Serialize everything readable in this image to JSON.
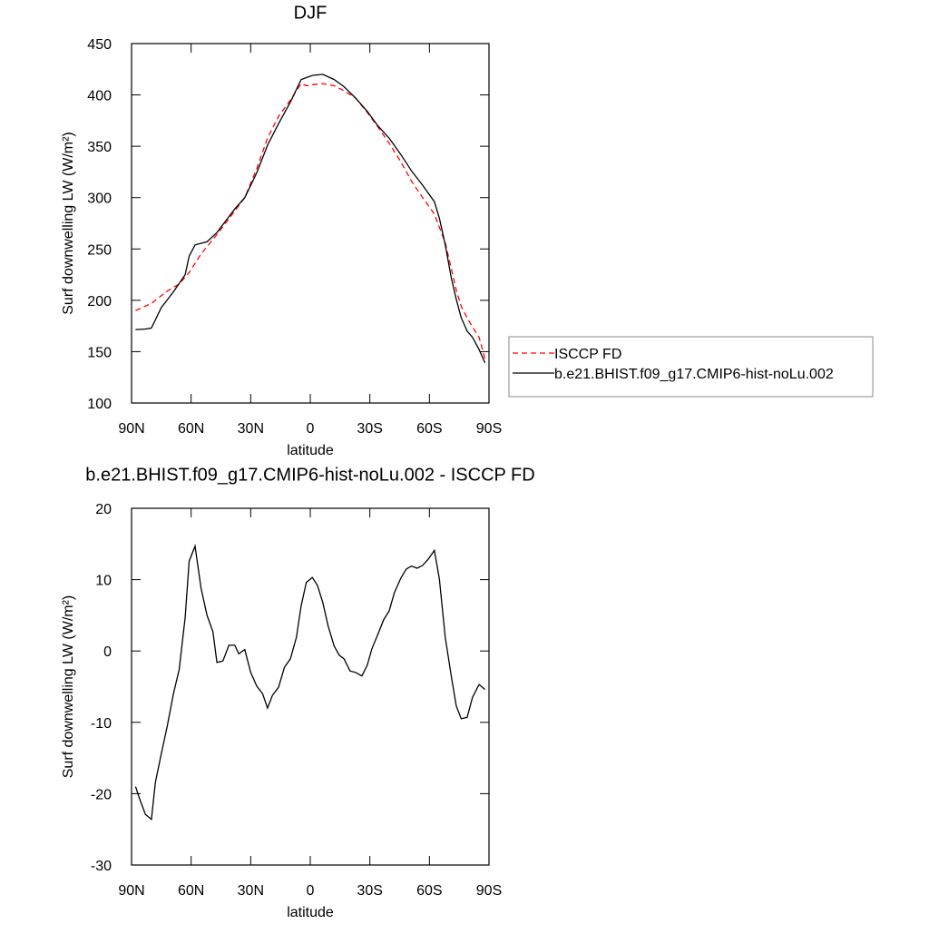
{
  "chart_data": [
    {
      "type": "line",
      "title": "DJF",
      "xlabel": "latitude",
      "ylabel": "Surf downwelling LW (W/m²)",
      "xlim": [
        90,
        -90
      ],
      "xticks": [
        {
          "value": 90,
          "label": "90N"
        },
        {
          "value": 60,
          "label": "60N"
        },
        {
          "value": 30,
          "label": "30N"
        },
        0,
        {
          "value": -30,
          "label": "30S"
        },
        {
          "value": -60,
          "label": "60S"
        },
        {
          "value": -90,
          "label": "90S"
        }
      ],
      "ylim": [
        100,
        450
      ],
      "yticks": [
        100,
        150,
        200,
        250,
        300,
        350,
        400,
        450
      ],
      "legend": "right",
      "series": [
        {
          "name": "ISCCP FD",
          "color": "#ff0000",
          "style": "dashed",
          "x": [
            88,
            80,
            72,
            66,
            61,
            55,
            47,
            38,
            33,
            27,
            21.5,
            16,
            10,
            4.6,
            2,
            -1,
            -6.3,
            -12,
            -17,
            -22.8,
            -28.7,
            -34,
            -39.7,
            -45.6,
            -51,
            -56.6,
            -62.5,
            -68,
            -73.5,
            -76,
            -79,
            -81.7,
            -85,
            -88
          ],
          "values": [
            190,
            197,
            209,
            216,
            227,
            245,
            264,
            287,
            300,
            328,
            358,
            379,
            395,
            411,
            409,
            410,
            411,
            409,
            404,
            397,
            383,
            369,
            353,
            335,
            316,
            300,
            284,
            256,
            210,
            194,
            183,
            174,
            164,
            143
          ]
        },
        {
          "name": "b.e21.BHIST.f09_g17.CMIP6-hist-noLu.002",
          "color": "#000000",
          "style": "solid",
          "x": [
            88,
            83,
            80,
            75,
            69,
            63,
            61,
            58,
            52,
            47,
            38,
            33,
            27,
            21.5,
            16,
            10,
            4.6,
            -1,
            -6.3,
            -12,
            -17,
            -22.8,
            -28.7,
            -34,
            -39.7,
            -45.6,
            -51,
            -56.6,
            -62.5,
            -65,
            -68,
            -71,
            -73.5,
            -76,
            -79,
            -81.7,
            -85,
            -88
          ],
          "values": [
            171.5,
            172,
            173,
            193,
            208,
            225,
            243,
            254,
            257,
            266,
            289,
            300,
            324,
            351,
            372,
            393,
            415,
            419,
            420,
            415,
            408,
            397,
            384,
            370,
            358,
            342,
            326,
            312,
            296,
            280,
            254,
            222,
            201,
            183,
            170,
            164,
            152,
            139
          ]
        }
      ]
    },
    {
      "type": "line",
      "title": "b.e21.BHIST.f09_g17.CMIP6-hist-noLu.002 - ISCCP FD",
      "xlabel": "latitude",
      "ylabel": "Surf downwelling LW (W/m²)",
      "xlim": [
        90,
        -90
      ],
      "xticks": [
        {
          "value": 90,
          "label": "90N"
        },
        {
          "value": 60,
          "label": "60N"
        },
        {
          "value": 30,
          "label": "30N"
        },
        0,
        {
          "value": -30,
          "label": "30S"
        },
        {
          "value": -60,
          "label": "60S"
        },
        {
          "value": -90,
          "label": "90S"
        }
      ],
      "ylim": [
        -30,
        20
      ],
      "yticks": [
        -30,
        -20,
        -10,
        0,
        10,
        20
      ],
      "series": [
        {
          "color": "#000000",
          "style": "solid",
          "x": [
            88,
            86,
            83,
            80,
            78,
            75,
            72,
            69,
            66,
            63,
            61,
            58,
            55,
            52,
            49,
            47,
            44,
            41,
            38,
            36,
            33,
            30,
            27,
            24,
            21.5,
            19,
            16,
            13,
            10,
            7,
            4.6,
            2,
            -1,
            -3.6,
            -6.3,
            -9,
            -12,
            -14.6,
            -17,
            -20,
            -22.8,
            -26,
            -28.7,
            -31,
            -34,
            -37,
            -39.7,
            -42.4,
            -45.6,
            -48.4,
            -51,
            -53.8,
            -56.6,
            -59.5,
            -62.5,
            -65,
            -68,
            -71,
            -73.5,
            -76,
            -79,
            -81.7,
            -85,
            -88
          ],
          "values": [
            -19,
            -20.7,
            -22.9,
            -23.6,
            -18.4,
            -14.4,
            -10.5,
            -6.1,
            -2.6,
            4.7,
            12.6,
            14.7,
            8.8,
            5.0,
            2.7,
            -1.6,
            -1.4,
            0.8,
            0.8,
            -0.4,
            0.2,
            -3.0,
            -4.9,
            -6.0,
            -8.0,
            -6.2,
            -5.1,
            -2.3,
            -1.1,
            1.9,
            6.3,
            9.6,
            10.3,
            9.2,
            6.8,
            3.5,
            0.7,
            -0.6,
            -1.1,
            -2.8,
            -3.0,
            -3.5,
            -2.0,
            0.3,
            2.3,
            4.4,
            5.6,
            8.2,
            10.2,
            11.5,
            11.9,
            11.6,
            12.0,
            12.9,
            14.1,
            10.1,
            1.9,
            -3.5,
            -7.7,
            -9.5,
            -9.3,
            -6.5,
            -4.7,
            -5.4
          ]
        }
      ]
    }
  ]
}
